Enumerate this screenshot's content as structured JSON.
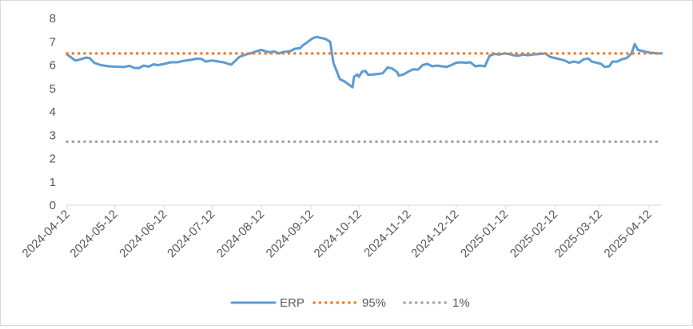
{
  "chart_data": {
    "type": "line",
    "title": "",
    "xlabel": "",
    "ylabel": "",
    "ylim": [
      0,
      8
    ],
    "ytick_labels": [
      "0",
      "1",
      "2",
      "3",
      "4",
      "5",
      "6",
      "7",
      "8"
    ],
    "xtick_labels": [
      "2024-04-12",
      "2024-05-12",
      "2024-06-12",
      "2024-07-12",
      "2024-08-12",
      "2024-09-12",
      "2024-10-12",
      "2024-11-12",
      "2024-12-12",
      "2025-01-12",
      "2025-02-12",
      "2025-03-12",
      "2025-04-12"
    ],
    "x_range": [
      "2024-04-12",
      "2025-04-20"
    ],
    "grid": false,
    "legend_position": "bottom",
    "series": [
      {
        "name": "ERP",
        "style": "solid",
        "color": "#5b9bd5",
        "points": [
          [
            "2024-04-12",
            6.45
          ],
          [
            "2024-04-15",
            6.3
          ],
          [
            "2024-04-17",
            6.2
          ],
          [
            "2024-04-19",
            6.22
          ],
          [
            "2024-04-22",
            6.28
          ],
          [
            "2024-04-24",
            6.32
          ],
          [
            "2024-04-26",
            6.3
          ],
          [
            "2024-04-29",
            6.1
          ],
          [
            "2024-05-03",
            6.0
          ],
          [
            "2024-05-08",
            5.95
          ],
          [
            "2024-05-12",
            5.93
          ],
          [
            "2024-05-15",
            5.92
          ],
          [
            "2024-05-18",
            5.92
          ],
          [
            "2024-05-21",
            5.97
          ],
          [
            "2024-05-24",
            5.88
          ],
          [
            "2024-05-27",
            5.87
          ],
          [
            "2024-05-30",
            5.98
          ],
          [
            "2024-06-02",
            5.93
          ],
          [
            "2024-06-05",
            6.03
          ],
          [
            "2024-06-08",
            6.0
          ],
          [
            "2024-06-12",
            6.05
          ],
          [
            "2024-06-16",
            6.12
          ],
          [
            "2024-06-20",
            6.12
          ],
          [
            "2024-06-24",
            6.18
          ],
          [
            "2024-06-28",
            6.22
          ],
          [
            "2024-07-02",
            6.27
          ],
          [
            "2024-07-05",
            6.27
          ],
          [
            "2024-07-08",
            6.15
          ],
          [
            "2024-07-12",
            6.2
          ],
          [
            "2024-07-16",
            6.15
          ],
          [
            "2024-07-19",
            6.12
          ],
          [
            "2024-07-22",
            6.05
          ],
          [
            "2024-07-24",
            6.02
          ],
          [
            "2024-07-26",
            6.15
          ],
          [
            "2024-07-29",
            6.35
          ],
          [
            "2024-08-02",
            6.45
          ],
          [
            "2024-08-05",
            6.5
          ],
          [
            "2024-08-09",
            6.6
          ],
          [
            "2024-08-12",
            6.65
          ],
          [
            "2024-08-14",
            6.6
          ],
          [
            "2024-08-17",
            6.55
          ],
          [
            "2024-08-20",
            6.58
          ],
          [
            "2024-08-23",
            6.5
          ],
          [
            "2024-08-25",
            6.55
          ],
          [
            "2024-08-27",
            6.57
          ],
          [
            "2024-08-30",
            6.6
          ],
          [
            "2024-09-02",
            6.7
          ],
          [
            "2024-09-05",
            6.72
          ],
          [
            "2024-09-07",
            6.85
          ],
          [
            "2024-09-10",
            7.0
          ],
          [
            "2024-09-12",
            7.1
          ],
          [
            "2024-09-14",
            7.18
          ],
          [
            "2024-09-16",
            7.2
          ],
          [
            "2024-09-19",
            7.15
          ],
          [
            "2024-09-21",
            7.12
          ],
          [
            "2024-09-24",
            7.0
          ],
          [
            "2024-09-26",
            6.1
          ],
          [
            "2024-09-28",
            5.75
          ],
          [
            "2024-09-30",
            5.4
          ],
          [
            "2024-10-03",
            5.3
          ],
          [
            "2024-10-05",
            5.2
          ],
          [
            "2024-10-08",
            5.05
          ],
          [
            "2024-10-09",
            5.5
          ],
          [
            "2024-10-11",
            5.6
          ],
          [
            "2024-10-12",
            5.5
          ],
          [
            "2024-10-14",
            5.72
          ],
          [
            "2024-10-16",
            5.75
          ],
          [
            "2024-10-18",
            5.58
          ],
          [
            "2024-10-21",
            5.6
          ],
          [
            "2024-10-24",
            5.62
          ],
          [
            "2024-10-27",
            5.65
          ],
          [
            "2024-10-30",
            5.9
          ],
          [
            "2024-11-02",
            5.85
          ],
          [
            "2024-11-05",
            5.7
          ],
          [
            "2024-11-06",
            5.55
          ],
          [
            "2024-11-09",
            5.6
          ],
          [
            "2024-11-12",
            5.72
          ],
          [
            "2024-11-15",
            5.82
          ],
          [
            "2024-11-18",
            5.8
          ],
          [
            "2024-11-21",
            6.0
          ],
          [
            "2024-11-24",
            6.05
          ],
          [
            "2024-11-27",
            5.95
          ],
          [
            "2024-11-30",
            5.98
          ],
          [
            "2024-12-03",
            5.95
          ],
          [
            "2024-12-06",
            5.92
          ],
          [
            "2024-12-09",
            6.0
          ],
          [
            "2024-12-12",
            6.1
          ],
          [
            "2024-12-15",
            6.12
          ],
          [
            "2024-12-18",
            6.1
          ],
          [
            "2024-12-21",
            6.12
          ],
          [
            "2024-12-24",
            5.95
          ],
          [
            "2024-12-27",
            5.98
          ],
          [
            "2024-12-30",
            5.95
          ],
          [
            "2025-01-02",
            6.4
          ],
          [
            "2025-01-05",
            6.48
          ],
          [
            "2025-01-08",
            6.45
          ],
          [
            "2025-01-11",
            6.5
          ],
          [
            "2025-01-14",
            6.48
          ],
          [
            "2025-01-17",
            6.42
          ],
          [
            "2025-01-20",
            6.4
          ],
          [
            "2025-01-23",
            6.45
          ],
          [
            "2025-01-26",
            6.42
          ],
          [
            "2025-01-29",
            6.45
          ],
          [
            "2025-02-03",
            6.48
          ],
          [
            "2025-02-06",
            6.5
          ],
          [
            "2025-02-09",
            6.35
          ],
          [
            "2025-02-12",
            6.3
          ],
          [
            "2025-02-15",
            6.25
          ],
          [
            "2025-02-18",
            6.2
          ],
          [
            "2025-02-21",
            6.1
          ],
          [
            "2025-02-24",
            6.15
          ],
          [
            "2025-02-27",
            6.1
          ],
          [
            "2025-03-02",
            6.25
          ],
          [
            "2025-03-05",
            6.28
          ],
          [
            "2025-03-07",
            6.15
          ],
          [
            "2025-03-10",
            6.1
          ],
          [
            "2025-03-13",
            6.05
          ],
          [
            "2025-03-15",
            5.92
          ],
          [
            "2025-03-18",
            5.95
          ],
          [
            "2025-03-20",
            6.15
          ],
          [
            "2025-03-23",
            6.15
          ],
          [
            "2025-03-26",
            6.25
          ],
          [
            "2025-03-29",
            6.3
          ],
          [
            "2025-04-01",
            6.5
          ],
          [
            "2025-04-03",
            6.9
          ],
          [
            "2025-04-05",
            6.65
          ],
          [
            "2025-04-08",
            6.6
          ],
          [
            "2025-04-11",
            6.55
          ],
          [
            "2025-04-14",
            6.52
          ],
          [
            "2025-04-17",
            6.5
          ],
          [
            "2025-04-20",
            6.5
          ]
        ]
      },
      {
        "name": "95%",
        "style": "dotted",
        "color": "#ed7d31",
        "points": [
          [
            "2024-04-12",
            6.5
          ],
          [
            "2025-04-20",
            6.5
          ]
        ]
      },
      {
        "name": "1%",
        "style": "dotted",
        "color": "#a5a5a5",
        "points": [
          [
            "2024-04-12",
            2.72
          ],
          [
            "2025-04-20",
            2.72
          ]
        ]
      }
    ]
  }
}
